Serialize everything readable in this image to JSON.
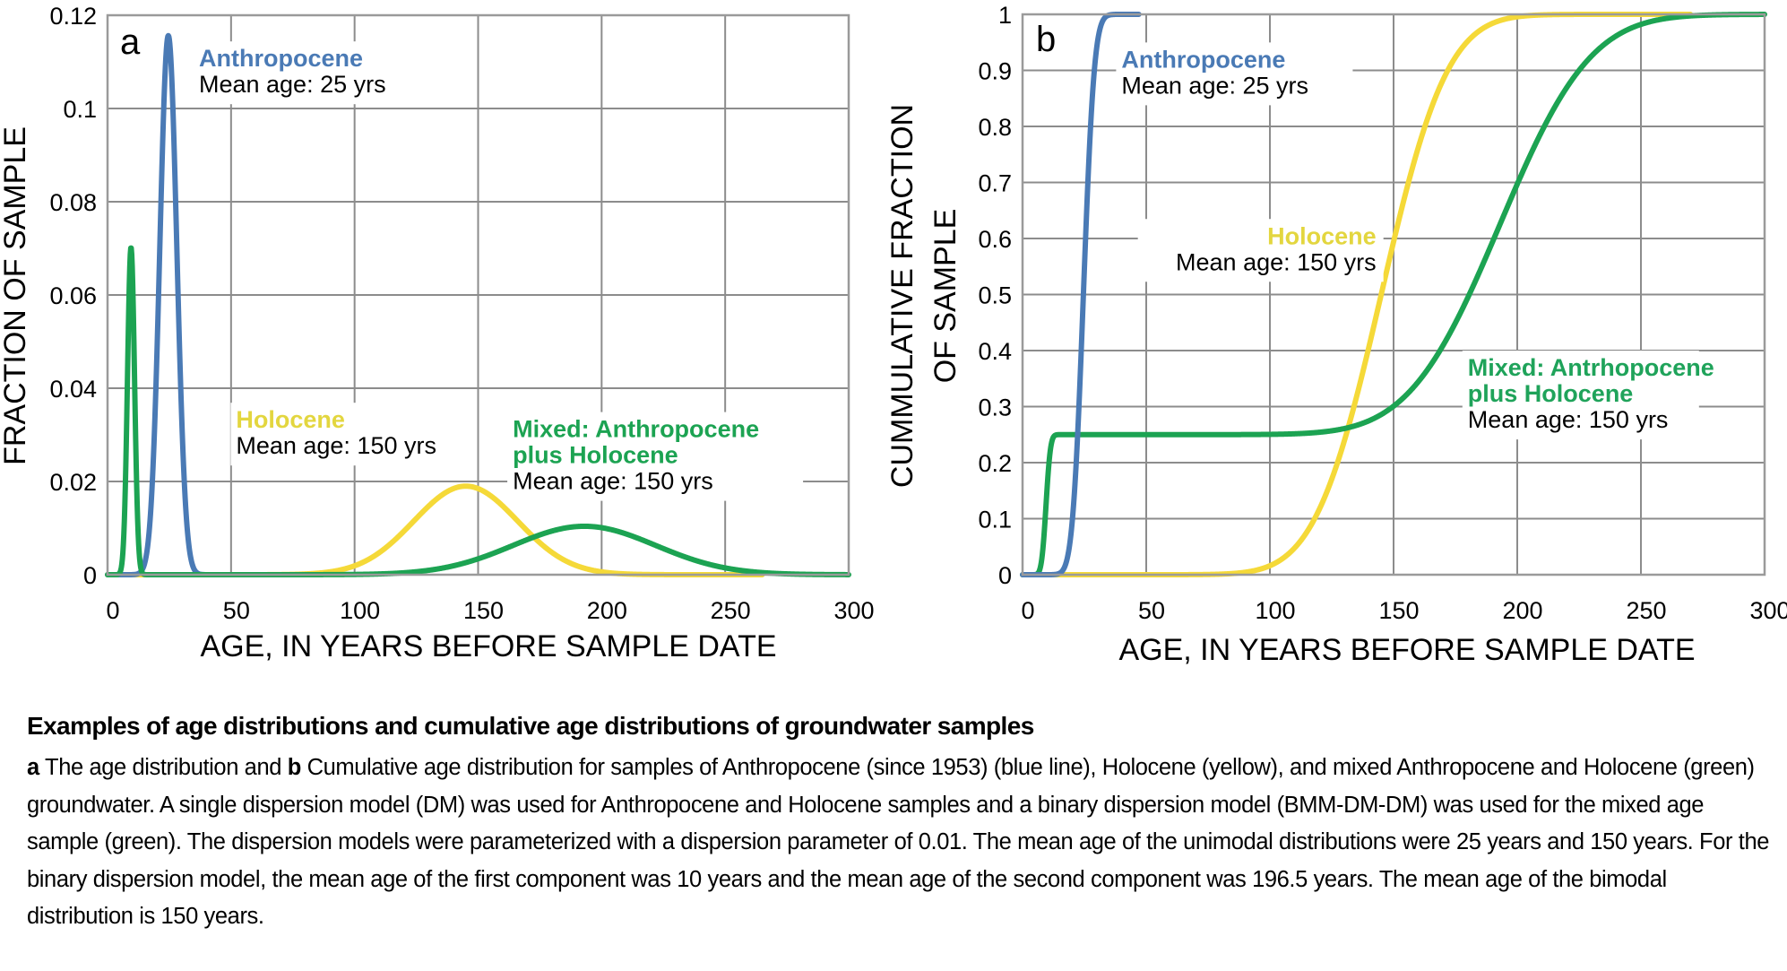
{
  "caption": {
    "title": "Examples of age distributions and cumulative age distributions of groundwater samples",
    "label_a": "a",
    "text_1": " The age distribution and ",
    "label_b": "b",
    "text_2": " Cumulative age distribution for samples of Anthropocene (since 1953) (blue line), Holocene (yellow), and mixed Anthropocene and Holocene (green) groundwater. A single dispersion model (DM) was used for Anthropocene and Holocene samples and a binary dispersion model (BMM-DM-DM) was used for the mixed age sample (green). The dispersion models were parameterized with a dispersion parameter of 0.01. The mean age of the unimodal distributions were 25 years and 150 years. For the binary dispersion model, the mean age of the first component was 10 years and the mean age of the second component was 196.5 years. The mean age of the bimodal distribution is 150 years."
  },
  "colors": {
    "anthropocene": "#4a7ab5",
    "holocene": "#f5d938",
    "holocene_label": "#e3d63f",
    "mixed": "#1ca352",
    "mixed_label": "#1fa35a",
    "grid": "#8c8c8c"
  },
  "chart_data": [
    {
      "id": "a",
      "type": "line",
      "panel_letter": "a",
      "title": "",
      "xlabel": "AGE, IN YEARS BEFORE SAMPLE DATE",
      "ylabel": "FRACTION OF SAMPLE",
      "xlim": [
        0,
        300
      ],
      "ylim": [
        0,
        0.12
      ],
      "xticks": [
        0,
        50,
        100,
        150,
        200,
        250,
        300
      ],
      "xtick_labels": [
        "0",
        "50",
        "100",
        "150",
        "200",
        "250",
        "300"
      ],
      "yticks": [
        0,
        0.02,
        0.04,
        0.06,
        0.08,
        0.1,
        0.12
      ],
      "ytick_labels": [
        "0",
        "0.02",
        "0.04",
        "0.06",
        "0.08",
        "0.1",
        "0.12"
      ],
      "grid": true,
      "legend": "none (inline annotations)",
      "series": [
        {
          "name": "Anthropocene",
          "color_key": "anthropocene",
          "model": {
            "components": [
              {
                "weight": 1.0,
                "mean": 24.6,
                "sd": 3.45
              }
            ]
          },
          "x_range": [
            0,
            40
          ],
          "peak": {
            "x": 24.6,
            "y": 0.115
          },
          "points": [
            [
              0,
              0
            ],
            [
              15,
              0.0024
            ],
            [
              18,
              0.017
            ],
            [
              20,
              0.048
            ],
            [
              22,
              0.086
            ],
            [
              24.6,
              0.115
            ],
            [
              27,
              0.092
            ],
            [
              29,
              0.053
            ],
            [
              31,
              0.021
            ],
            [
              34,
              0.0033
            ],
            [
              40,
              0
            ]
          ]
        },
        {
          "name": "Holocene",
          "color_key": "holocene",
          "model": {
            "components": [
              {
                "weight": 1.0,
                "mean": 145,
                "sd": 21
              }
            ]
          },
          "x_range": [
            0,
            265
          ],
          "peak": {
            "x": 145,
            "y": 0.019
          },
          "points": [
            [
              0,
              0
            ],
            [
              90,
              0.0006
            ],
            [
              100,
              0.0019
            ],
            [
              110,
              0.0047
            ],
            [
              120,
              0.0093
            ],
            [
              130,
              0.0148
            ],
            [
              145,
              0.019
            ],
            [
              160,
              0.0148
            ],
            [
              170,
              0.0093
            ],
            [
              180,
              0.0047
            ],
            [
              200,
              0.0006
            ],
            [
              265,
              0
            ]
          ]
        },
        {
          "name": "Mixed: Anthropocene plus Holocene",
          "color_key": "mixed",
          "model": {
            "components": [
              {
                "weight": 0.25,
                "mean": 9.5,
                "sd": 1.42
              },
              {
                "weight": 0.75,
                "mean": 193,
                "sd": 28.8
              }
            ]
          },
          "x_range": [
            0,
            300
          ],
          "peak": [
            {
              "x": 9.5,
              "y": 0.07
            },
            {
              "x": 193,
              "y": 0.0104
            }
          ],
          "points": [
            [
              0,
              0
            ],
            [
              6,
              0.0034
            ],
            [
              8,
              0.04
            ],
            [
              9.5,
              0.07
            ],
            [
              11,
              0.04
            ],
            [
              13,
              0.0034
            ],
            [
              20,
              0
            ],
            [
              130,
              0.0009
            ],
            [
              150,
              0.0027
            ],
            [
              170,
              0.0075
            ],
            [
              193,
              0.0104
            ],
            [
              220,
              0.0067
            ],
            [
              250,
              0.0015
            ],
            [
              300,
              0.0001
            ]
          ]
        }
      ],
      "annotations": [
        {
          "title": "Anthropocene",
          "text": "Mean age: 25 yrs",
          "color_key": "anthropocene",
          "x": 37,
          "y": 0.109
        },
        {
          "title": "Holocene",
          "text": "Mean age: 150 yrs",
          "color_key": "holocene_label",
          "x": 52,
          "y": 0.0315
        },
        {
          "title_lines": [
            "Mixed: Anthropocene",
            "plus Holocene"
          ],
          "text": "Mean age: 150 yrs",
          "color_key": "mixed",
          "x": 164,
          "y": 0.0295
        }
      ]
    },
    {
      "id": "b",
      "type": "line",
      "panel_letter": "b",
      "title": "",
      "xlabel": "AGE, IN YEARS BEFORE SAMPLE DATE",
      "ylabel_lines": [
        "CUMMULATIVE FRACTION",
        "OF SAMPLE"
      ],
      "xlim": [
        0,
        300
      ],
      "ylim": [
        0,
        1
      ],
      "xticks": [
        0,
        50,
        100,
        150,
        200,
        250,
        300
      ],
      "xtick_labels": [
        "0",
        "50",
        "100",
        "150",
        "200",
        "250",
        "300"
      ],
      "yticks": [
        0,
        0.1,
        0.2,
        0.3,
        0.4,
        0.5,
        0.6,
        0.7,
        0.8,
        0.9,
        1
      ],
      "ytick_labels": [
        "0",
        "0.1",
        "0.2",
        "0.3",
        "0.4",
        "0.5",
        "0.6",
        "0.7",
        "0.8",
        "0.9",
        "1"
      ],
      "grid": true,
      "legend": "none (inline annotations)",
      "series": [
        {
          "name": "Anthropocene",
          "color_key": "anthropocene",
          "model": {
            "cumulative": true,
            "components": [
              {
                "weight": 1.0,
                "mean": 24.6,
                "sd": 3.45
              }
            ]
          },
          "x_range": [
            0,
            47
          ],
          "points": [
            [
              0,
              0
            ],
            [
              15,
              0.003
            ],
            [
              20,
              0.09
            ],
            [
              24.6,
              0.5
            ],
            [
              28,
              0.84
            ],
            [
              32,
              0.98
            ],
            [
              40,
              1
            ],
            [
              47,
              1
            ]
          ]
        },
        {
          "name": "Holocene",
          "color_key": "holocene",
          "model": {
            "cumulative": true,
            "components": [
              {
                "weight": 1.0,
                "mean": 145,
                "sd": 21
              }
            ]
          },
          "x_range": [
            0,
            270
          ],
          "points": [
            [
              0,
              0
            ],
            [
              100,
              0.016
            ],
            [
              120,
              0.12
            ],
            [
              135,
              0.32
            ],
            [
              145,
              0.5
            ],
            [
              160,
              0.76
            ],
            [
              180,
              0.95
            ],
            [
              200,
              0.996
            ],
            [
              270,
              1
            ]
          ]
        },
        {
          "name": "Mixed: Antrhopocene plus Holocene",
          "color_key": "mixed",
          "model": {
            "cumulative": true,
            "components": [
              {
                "weight": 0.25,
                "mean": 9.5,
                "sd": 1.42
              },
              {
                "weight": 0.75,
                "mean": 193,
                "sd": 28.8
              }
            ]
          },
          "x_range": [
            0,
            300
          ],
          "points": [
            [
              0,
              0
            ],
            [
              7,
              0.009
            ],
            [
              9.5,
              0.125
            ],
            [
              12,
              0.24
            ],
            [
              15,
              0.25
            ],
            [
              130,
              0.254
            ],
            [
              150,
              0.283
            ],
            [
              170,
              0.39
            ],
            [
              193,
              0.625
            ],
            [
              220,
              0.87
            ],
            [
              250,
              0.98
            ],
            [
              300,
              1
            ]
          ]
        }
      ],
      "annotations": [
        {
          "title": "Anthropocene",
          "text": "Mean age: 25 yrs",
          "color_key": "anthropocene",
          "x": 40,
          "y": 0.905
        },
        {
          "title": "Holocene",
          "text": "Mean age: 150 yrs",
          "color_key": "holocene_label",
          "x": 50,
          "y": 0.59,
          "align": "right",
          "x_right": 143
        },
        {
          "title_lines": [
            "Mixed: Antrhopocene",
            "plus Holocene"
          ],
          "text": "Mean age: 150 yrs",
          "color_key": "mixed_label",
          "x": 180,
          "y": 0.355
        }
      ]
    }
  ]
}
